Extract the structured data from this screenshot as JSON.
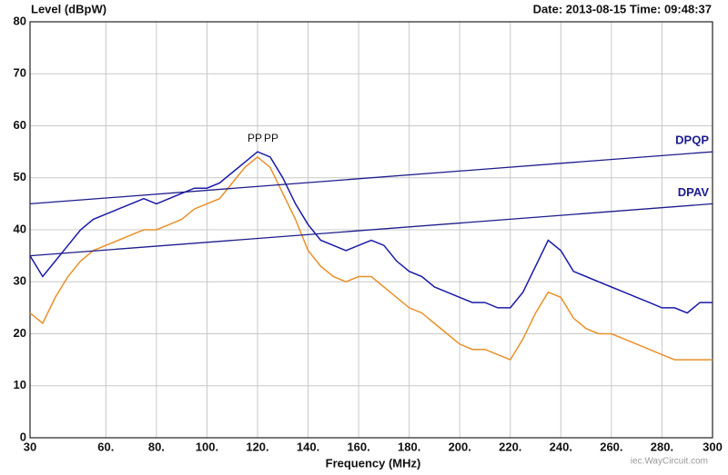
{
  "chart_data": {
    "type": "line",
    "title": "Level (dBpW)",
    "subtitle": "Date: 2013-08-15  Time: 09:48:37",
    "x_label": "Frequency (MHz)",
    "annotations": [
      "PP",
      "PP"
    ],
    "watermark": "iec.WayCircuit.com",
    "xlim": [
      30,
      300
    ],
    "ylim": [
      0,
      80
    ],
    "xticks": [
      30,
      {
        "value": 60,
        "label": "60."
      },
      {
        "value": 80,
        "label": "80."
      },
      {
        "value": 100,
        "label": "100."
      },
      {
        "value": 120,
        "label": "120."
      },
      {
        "value": 140,
        "label": "140."
      },
      {
        "value": 160,
        "label": "160."
      },
      {
        "value": 180,
        "label": "180."
      },
      {
        "value": 200,
        "label": "200."
      },
      {
        "value": 220,
        "label": "220."
      },
      {
        "value": 240,
        "label": "240."
      },
      {
        "value": 260,
        "label": "260."
      },
      {
        "value": 280,
        "label": "280."
      },
      300
    ],
    "yticks": [
      0,
      10,
      20,
      30,
      40,
      50,
      60,
      70,
      80
    ],
    "grid": true,
    "series": [
      {
        "color": "#e8902a",
        "x": [
          30,
          35,
          40,
          45,
          50,
          55,
          60,
          65,
          70,
          75,
          80,
          85,
          90,
          95,
          100,
          105,
          110,
          115,
          120,
          125,
          130,
          135,
          140,
          145,
          150,
          155,
          160,
          165,
          170,
          175,
          180,
          185,
          190,
          195,
          200,
          205,
          210,
          215,
          220,
          225,
          230,
          235,
          240,
          245,
          250,
          255,
          260,
          265,
          270,
          275,
          280,
          285,
          290,
          295,
          300
        ],
        "values": [
          24,
          22,
          27,
          31,
          34,
          36,
          37,
          38,
          39,
          40,
          40,
          41,
          42,
          44,
          45,
          46,
          49,
          52,
          54,
          52,
          47,
          42,
          36,
          33,
          31,
          30,
          31,
          31,
          29,
          27,
          25,
          24,
          22,
          20,
          18,
          17,
          17,
          16,
          15,
          19,
          24,
          28,
          27,
          23,
          21,
          20,
          20,
          19,
          18,
          17,
          16,
          15,
          15,
          15,
          15
        ]
      },
      {
        "color": "#1a1aa8",
        "x": [
          30,
          35,
          40,
          45,
          50,
          55,
          60,
          65,
          70,
          75,
          80,
          85,
          90,
          95,
          100,
          105,
          110,
          115,
          120,
          125,
          130,
          135,
          140,
          145,
          150,
          155,
          160,
          165,
          170,
          175,
          180,
          185,
          190,
          195,
          200,
          205,
          210,
          215,
          220,
          225,
          230,
          235,
          240,
          245,
          250,
          255,
          260,
          265,
          270,
          275,
          280,
          285,
          290,
          295,
          300
        ],
        "values": [
          35,
          31,
          34,
          37,
          40,
          42,
          43,
          44,
          45,
          46,
          45,
          46,
          47,
          48,
          48,
          49,
          51,
          53,
          55,
          54,
          50,
          45,
          41,
          38,
          37,
          36,
          37,
          38,
          37,
          34,
          32,
          31,
          29,
          28,
          27,
          26,
          26,
          25,
          25,
          28,
          33,
          38,
          36,
          32,
          31,
          30,
          29,
          28,
          27,
          26,
          25,
          25,
          24,
          26,
          26
        ]
      },
      {
        "name": "DPQP",
        "color": "#1c1c8c",
        "x": [
          30,
          300
        ],
        "values": [
          45,
          55
        ]
      },
      {
        "name": "DPAV",
        "color": "#1c1c8c",
        "x": [
          30,
          300
        ],
        "values": [
          35,
          45
        ]
      }
    ]
  }
}
